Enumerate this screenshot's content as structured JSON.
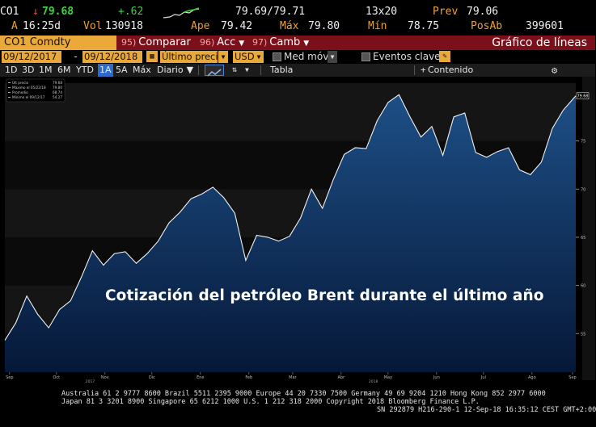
{
  "quote": {
    "ticker": "CO1",
    "arrow": "↓",
    "last": "79.68",
    "change": "+.62",
    "bid_ask": "79.69/79.71",
    "size": "13x20",
    "prev_label": "Prev",
    "prev": "79.06",
    "flag": "A",
    "time": "16:25d",
    "vol_label": "Vol",
    "vol": "130918",
    "open_label": "Ape",
    "open": "79.42",
    "high_label": "Máx",
    "high": "79.80",
    "low_label": "Mín",
    "low": "78.75",
    "oi_label": "PosAb",
    "oi": "399601"
  },
  "toolbar": {
    "security": "CO1 Comdty",
    "compare_num": "95)",
    "compare": "Comparar",
    "actions_num": "96)",
    "actions": "Acc",
    "edit_num": "97)",
    "edit": "Camb",
    "chart_type": "Gráfico de líneas"
  },
  "settings": {
    "start_date": "09/12/2017",
    "end_date": "09/12/2018",
    "field": "Último precio",
    "currency": "USD",
    "mov_avg": "Med móv",
    "key_events": "Eventos clave"
  },
  "ranges": {
    "items": [
      "1D",
      "3D",
      "1M",
      "6M",
      "YTD",
      "1A",
      "5A",
      "Máx"
    ],
    "selected": "1A",
    "period": "Diario",
    "table": "Tabla",
    "content": "Contenido"
  },
  "legend": {
    "rows": [
      {
        "label": "Últ precio",
        "value": "79.68"
      },
      {
        "label": "Máximo el 05/22/18",
        "value": "79.80"
      },
      {
        "label": "Promedio",
        "value": "68.74"
      },
      {
        "label": "Mínimo el 09/12/17",
        "value": "54.27"
      }
    ]
  },
  "overlay_title": "Cotización del petróleo Brent durante el último año",
  "chart_data": {
    "type": "area",
    "ylim": [
      51,
      81
    ],
    "y_ticks": [
      55,
      60,
      65,
      70,
      75
    ],
    "y_tick_labels": [
      "55",
      "60",
      "65",
      "70",
      "75"
    ],
    "last_value_label": "79.68",
    "x_month_labels": [
      "Sep",
      "Oct",
      "Nov",
      "Dic",
      "Ene",
      "Feb",
      "Mar",
      "Abr",
      "May",
      "Jun",
      "Jul",
      "Ago",
      "Sep"
    ],
    "x_year_labels": [
      "2017",
      "2018"
    ],
    "x": [
      "2017-09-12",
      "2017-09-19",
      "2017-09-26",
      "2017-10-03",
      "2017-10-10",
      "2017-10-17",
      "2017-10-24",
      "2017-10-31",
      "2017-11-07",
      "2017-11-14",
      "2017-11-21",
      "2017-11-28",
      "2017-12-05",
      "2017-12-12",
      "2017-12-19",
      "2017-12-26",
      "2018-01-02",
      "2018-01-09",
      "2018-01-16",
      "2018-01-23",
      "2018-01-30",
      "2018-02-06",
      "2018-02-13",
      "2018-02-20",
      "2018-02-27",
      "2018-03-06",
      "2018-03-13",
      "2018-03-20",
      "2018-03-27",
      "2018-04-03",
      "2018-04-10",
      "2018-04-17",
      "2018-04-24",
      "2018-05-01",
      "2018-05-08",
      "2018-05-15",
      "2018-05-22",
      "2018-05-29",
      "2018-06-05",
      "2018-06-12",
      "2018-06-19",
      "2018-06-26",
      "2018-07-03",
      "2018-07-10",
      "2018-07-17",
      "2018-07-24",
      "2018-07-31",
      "2018-08-07",
      "2018-08-14",
      "2018-08-21",
      "2018-08-28",
      "2018-09-04",
      "2018-09-11",
      "2018-09-12"
    ],
    "series": [
      {
        "values": [
          54.3,
          56.1,
          58.9,
          57.0,
          55.6,
          57.5,
          58.4,
          60.9,
          63.6,
          62.1,
          63.3,
          63.5,
          62.3,
          63.3,
          64.6,
          66.5,
          67.6,
          69.0,
          69.5,
          70.2,
          69.1,
          67.5,
          62.6,
          65.2,
          65.0,
          64.6,
          65.1,
          67.0,
          70.0,
          68.0,
          71.0,
          73.6,
          74.3,
          74.2,
          77.1,
          79.0,
          79.8,
          77.5,
          75.4,
          76.5,
          73.5,
          77.5,
          77.9,
          73.8,
          73.3,
          73.9,
          74.3,
          72.0,
          71.5,
          72.8,
          76.3,
          78.2,
          79.5,
          79.68
        ]
      }
    ]
  },
  "footer": {
    "line1": "Australia 61 2 9777 8600 Brazil 5511 2395 9000 Europe 44 20 7330 7500 Germany 49 69 9204 1210 Hong Kong 852 2977 6000",
    "line2": "Japan 81 3 3201 8900       Singapore 65 6212 1000       U.S. 1 212 318 2000              Copyright 2018 Bloomberg Finance L.P.",
    "line3": "SN 292879 H216-290-1 12-Sep-18 16:35:12 CEST GMT+2:00"
  },
  "colors": {
    "accent": "#e9a83a",
    "toolbar": "#7b0f1a",
    "area_top": "#1d4f86",
    "area_bottom": "#061838",
    "line": "#f2f2f2",
    "up": "#3ad63a",
    "down": "#ff4a2a"
  }
}
